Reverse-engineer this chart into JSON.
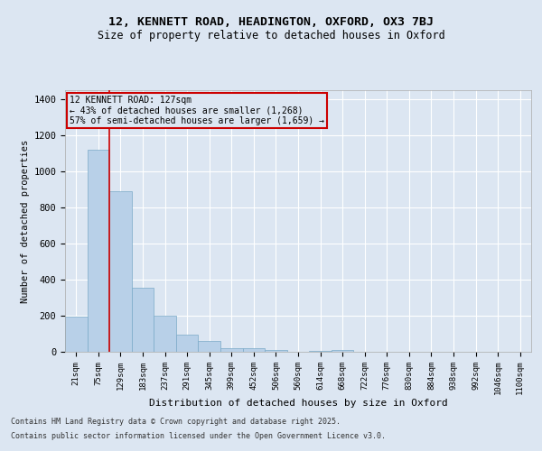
{
  "title1": "12, KENNETT ROAD, HEADINGTON, OXFORD, OX3 7BJ",
  "title2": "Size of property relative to detached houses in Oxford",
  "xlabel": "Distribution of detached houses by size in Oxford",
  "ylabel": "Number of detached properties",
  "categories": [
    "21sqm",
    "75sqm",
    "129sqm",
    "183sqm",
    "237sqm",
    "291sqm",
    "345sqm",
    "399sqm",
    "452sqm",
    "506sqm",
    "560sqm",
    "614sqm",
    "668sqm",
    "722sqm",
    "776sqm",
    "830sqm",
    "884sqm",
    "938sqm",
    "992sqm",
    "1046sqm",
    "1100sqm"
  ],
  "values": [
    195,
    1120,
    890,
    355,
    200,
    95,
    60,
    22,
    18,
    10,
    0,
    5,
    10,
    0,
    0,
    0,
    0,
    0,
    0,
    0,
    0
  ],
  "bar_color": "#b8d0e8",
  "bar_edge_color": "#7aaac8",
  "background_color": "#dce6f2",
  "grid_color": "#ffffff",
  "vline_color": "#cc0000",
  "annotation_box_color": "#cc0000",
  "annotation_title": "12 KENNETT ROAD: 127sqm",
  "annotation_line1": "← 43% of detached houses are smaller (1,268)",
  "annotation_line2": "57% of semi-detached houses are larger (1,659) →",
  "ylim": [
    0,
    1450
  ],
  "yticks": [
    0,
    200,
    400,
    600,
    800,
    1000,
    1200,
    1400
  ],
  "footnote1": "Contains HM Land Registry data © Crown copyright and database right 2025.",
  "footnote2": "Contains public sector information licensed under the Open Government Licence v3.0."
}
